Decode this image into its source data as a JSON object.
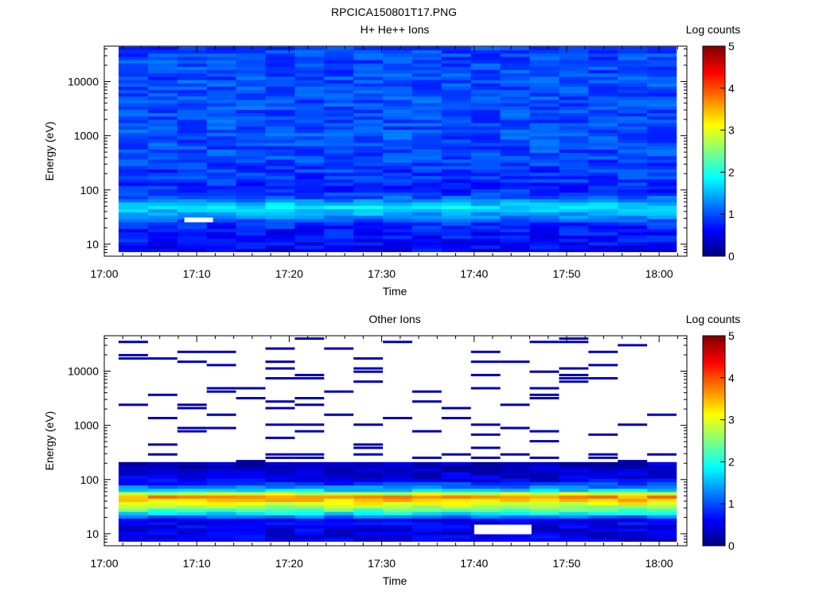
{
  "figure": {
    "title": "RPCICA150801T17.PNG"
  },
  "chart_data": [
    {
      "type": "heatmap",
      "title": "H+ He++ Ions",
      "xlabel": "Time",
      "ylabel": "Energy (eV)",
      "x_ticks": [
        "17:00",
        "17:10",
        "17:20",
        "17:30",
        "17:40",
        "17:50",
        "18:00"
      ],
      "x_range": [
        "17:00",
        "18:03"
      ],
      "y_scale": "log",
      "y_ticks": [
        "10",
        "100",
        "1000",
        "10000"
      ],
      "y_range": [
        6,
        45000
      ],
      "time_bins": 19,
      "colorbar": {
        "label": "Log counts",
        "range": [
          0,
          5
        ],
        "ticks": [
          "0",
          "1",
          "2",
          "3",
          "4",
          "5"
        ],
        "colormap": "jet"
      },
      "energy_profile": [
        {
          "energy_eV": 8,
          "log_counts": 0.6
        },
        {
          "energy_eV": 12,
          "log_counts": 0.7
        },
        {
          "energy_eV": 18,
          "log_counts": 0.7
        },
        {
          "energy_eV": 25,
          "log_counts": 0.9
        },
        {
          "energy_eV": 35,
          "log_counts": 1.4
        },
        {
          "energy_eV": 50,
          "log_counts": 1.8
        },
        {
          "energy_eV": 70,
          "log_counts": 1.1
        },
        {
          "energy_eV": 100,
          "log_counts": 0.8
        },
        {
          "energy_eV": 300,
          "log_counts": 0.95
        },
        {
          "energy_eV": 1000,
          "log_counts": 1.0
        },
        {
          "energy_eV": 3000,
          "log_counts": 1.0
        },
        {
          "energy_eV": 10000,
          "log_counts": 1.0
        },
        {
          "energy_eV": 40000,
          "log_counts": 0.95
        }
      ],
      "gaps": [
        {
          "time": "17:09",
          "energy_eV": 28
        }
      ]
    },
    {
      "type": "heatmap",
      "title": "Other Ions",
      "xlabel": "Time",
      "ylabel": "Energy (eV)",
      "x_ticks": [
        "17:00",
        "17:10",
        "17:20",
        "17:30",
        "17:40",
        "17:50",
        "18:00"
      ],
      "x_range": [
        "17:00",
        "18:03"
      ],
      "y_scale": "log",
      "y_ticks": [
        "10",
        "100",
        "1000",
        "10000"
      ],
      "y_range": [
        6,
        45000
      ],
      "time_bins": 19,
      "colorbar": {
        "label": "Log counts",
        "range": [
          0,
          5
        ],
        "ticks": [
          "0",
          "1",
          "2",
          "3",
          "4",
          "5"
        ],
        "colormap": "jet"
      },
      "energy_profile": [
        {
          "energy_eV": 8,
          "log_counts": 0.5
        },
        {
          "energy_eV": 12,
          "log_counts": 0.5
        },
        {
          "energy_eV": 18,
          "log_counts": 0.6
        },
        {
          "energy_eV": 25,
          "log_counts": 2.0
        },
        {
          "energy_eV": 30,
          "log_counts": 2.6
        },
        {
          "energy_eV": 40,
          "log_counts": 3.3
        },
        {
          "energy_eV": 50,
          "log_counts": 3.7
        },
        {
          "energy_eV": 65,
          "log_counts": 1.5
        },
        {
          "energy_eV": 100,
          "log_counts": 0.5
        },
        {
          "energy_eV": 180,
          "log_counts": 0.3
        }
      ],
      "sparse_above_eV": 200,
      "sparse_log_counts": 0.2,
      "gaps": [
        {
          "time": "17:40",
          "energy_eV": 12
        }
      ]
    }
  ]
}
